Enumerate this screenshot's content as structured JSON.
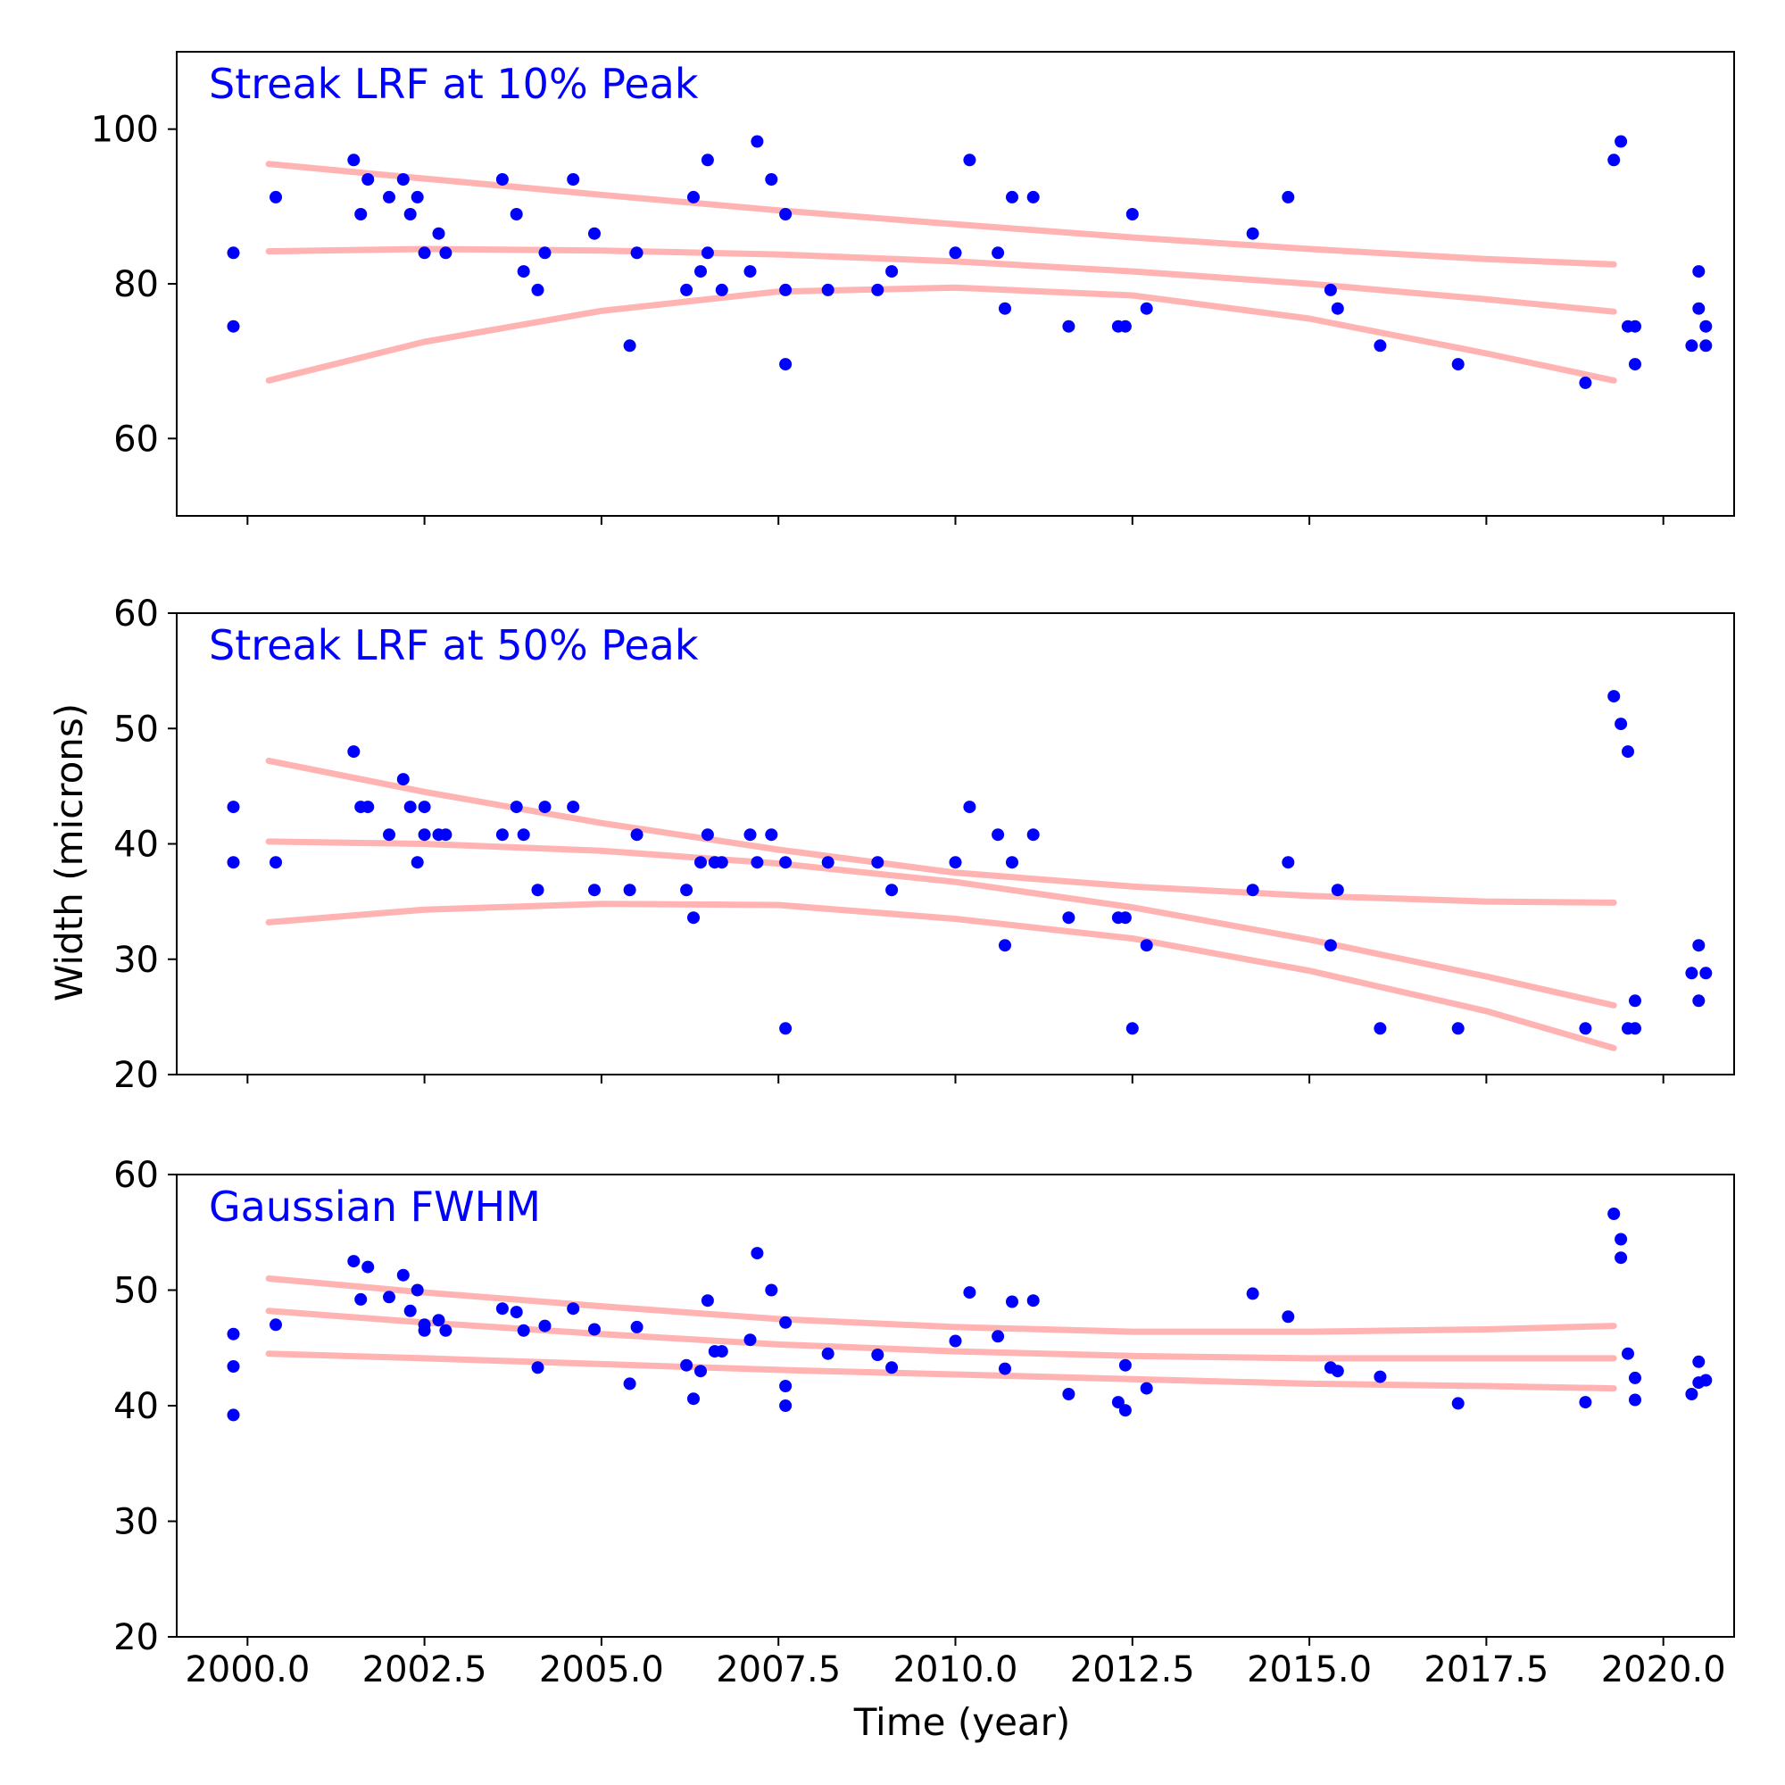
{
  "figure": {
    "xlabel": "Time (year)",
    "ylabel": "Width (microns)",
    "xlim": [
      1999.0,
      2021.0
    ],
    "xticks": [
      2000.0,
      2002.5,
      2005.0,
      2007.5,
      2010.0,
      2012.5,
      2015.0,
      2017.5,
      2020.0
    ],
    "xtick_labels": [
      "2000.0",
      "2002.5",
      "2005.0",
      "2007.5",
      "2010.0",
      "2012.5",
      "2015.0",
      "2017.5",
      "2020.0"
    ],
    "colors": {
      "points": "#0000ff",
      "fit": "#ffb3b3",
      "title": "#0000ff",
      "axes": "#000000"
    }
  },
  "chart_data": [
    {
      "type": "scatter",
      "title": "Streak LRF at 10% Peak",
      "ylim": [
        50,
        110
      ],
      "yticks": [
        60,
        80,
        100
      ],
      "ytick_labels": [
        "60",
        "80",
        "100"
      ],
      "grid": false,
      "points": {
        "x": [
          1999.8,
          1999.8,
          2000.4,
          2001.5,
          2001.6,
          2001.7,
          2002.0,
          2002.2,
          2002.3,
          2002.4,
          2002.5,
          2002.7,
          2002.8,
          2003.6,
          2003.8,
          2003.9,
          2004.1,
          2004.2,
          2004.6,
          2004.9,
          2005.4,
          2005.5,
          2006.2,
          2006.3,
          2006.4,
          2006.5,
          2006.5,
          2006.7,
          2007.1,
          2007.2,
          2007.4,
          2007.6,
          2007.6,
          2007.6,
          2008.2,
          2008.9,
          2009.1,
          2010.0,
          2010.2,
          2010.6,
          2010.7,
          2010.8,
          2011.1,
          2011.6,
          2012.3,
          2012.4,
          2012.5,
          2012.7,
          2014.2,
          2014.7,
          2015.3,
          2015.4,
          2016.0,
          2017.1,
          2018.9,
          2019.3,
          2019.4,
          2019.5,
          2019.6,
          2019.6,
          2020.4,
          2020.5,
          2020.5,
          2020.6,
          2020.6
        ],
        "y": [
          84,
          74.5,
          91.2,
          96,
          89,
          93.5,
          91.2,
          93.5,
          89,
          91.2,
          84,
          86.5,
          84,
          93.5,
          89,
          81.6,
          79.2,
          84,
          93.5,
          86.5,
          72,
          84,
          79.2,
          91.2,
          81.6,
          96,
          84,
          79.2,
          81.6,
          98.4,
          93.5,
          79.2,
          89,
          69.6,
          79.2,
          79.2,
          81.6,
          84,
          96,
          84,
          76.8,
          91.2,
          91.2,
          74.5,
          74.5,
          74.5,
          89,
          76.8,
          86.5,
          91.2,
          79.2,
          76.8,
          72,
          69.6,
          67.2,
          96,
          98.4,
          74.5,
          74.5,
          69.6,
          72,
          76.8,
          81.6,
          74.5,
          72
        ]
      },
      "fits": [
        {
          "x": [
            2000.3,
            2002.5,
            2005.0,
            2007.5,
            2010.0,
            2012.5,
            2015.0,
            2017.5,
            2019.3
          ],
          "y": [
            95.5,
            93.6,
            91.5,
            89.5,
            87.7,
            86.0,
            84.5,
            83.2,
            82.5
          ]
        },
        {
          "x": [
            2000.3,
            2002.5,
            2005.0,
            2007.5,
            2010.0,
            2012.5,
            2015.0,
            2017.5,
            2019.3
          ],
          "y": [
            84.2,
            84.5,
            84.3,
            83.8,
            82.9,
            81.6,
            80.0,
            78.0,
            76.4
          ]
        },
        {
          "x": [
            2000.3,
            2002.5,
            2005.0,
            2007.5,
            2010.0,
            2012.5,
            2015.0,
            2017.5,
            2019.3
          ],
          "y": [
            67.5,
            72.5,
            76.5,
            79.0,
            79.5,
            78.5,
            75.5,
            71.0,
            67.5
          ]
        }
      ]
    },
    {
      "type": "scatter",
      "title": "Streak LRF at 50% Peak",
      "ylim": [
        20,
        60
      ],
      "yticks": [
        20,
        30,
        40,
        50,
        60
      ],
      "ytick_labels": [
        "20",
        "30",
        "40",
        "50",
        "60"
      ],
      "grid": false,
      "points": {
        "x": [
          1999.8,
          1999.8,
          2000.4,
          2001.5,
          2001.6,
          2001.7,
          2002.0,
          2002.2,
          2002.3,
          2002.4,
          2002.5,
          2002.5,
          2002.7,
          2002.8,
          2003.6,
          2003.8,
          2003.9,
          2004.1,
          2004.2,
          2004.6,
          2004.9,
          2005.4,
          2005.5,
          2006.2,
          2006.3,
          2006.4,
          2006.5,
          2006.6,
          2006.7,
          2007.1,
          2007.2,
          2007.4,
          2007.6,
          2007.6,
          2008.2,
          2008.9,
          2009.1,
          2010.0,
          2010.2,
          2010.6,
          2010.7,
          2010.8,
          2011.1,
          2011.6,
          2012.3,
          2012.4,
          2012.5,
          2012.7,
          2014.2,
          2014.7,
          2015.3,
          2015.4,
          2016.0,
          2017.1,
          2018.9,
          2019.3,
          2019.4,
          2019.5,
          2019.5,
          2019.6,
          2019.6,
          2020.4,
          2020.5,
          2020.5,
          2020.6
        ],
        "y": [
          43.2,
          38.4,
          38.4,
          48,
          43.2,
          43.2,
          40.8,
          45.6,
          43.2,
          38.4,
          40.8,
          43.2,
          40.8,
          40.8,
          40.8,
          43.2,
          40.8,
          36,
          43.2,
          43.2,
          36,
          36,
          40.8,
          36,
          33.6,
          38.4,
          40.8,
          38.4,
          38.4,
          40.8,
          38.4,
          40.8,
          38.4,
          24,
          38.4,
          38.4,
          36,
          38.4,
          43.2,
          40.8,
          31.2,
          38.4,
          40.8,
          33.6,
          33.6,
          33.6,
          24,
          31.2,
          36,
          38.4,
          31.2,
          36,
          24,
          24,
          24,
          52.8,
          50.4,
          48,
          24,
          26.4,
          24,
          28.8,
          31.2,
          26.4,
          28.8
        ]
      },
      "fits": [
        {
          "x": [
            2000.3,
            2002.5,
            2005.0,
            2007.5,
            2010.0,
            2012.5,
            2015.0,
            2017.5,
            2019.3
          ],
          "y": [
            47.2,
            44.5,
            41.8,
            39.5,
            37.5,
            36.3,
            35.5,
            35.0,
            34.9
          ]
        },
        {
          "x": [
            2000.3,
            2002.5,
            2005.0,
            2007.5,
            2010.0,
            2012.5,
            2015.0,
            2017.5,
            2019.3
          ],
          "y": [
            40.2,
            40.0,
            39.4,
            38.3,
            36.7,
            34.5,
            31.7,
            28.5,
            26.0
          ]
        },
        {
          "x": [
            2000.3,
            2002.5,
            2005.0,
            2007.5,
            2010.0,
            2012.5,
            2015.0,
            2017.5,
            2019.3
          ],
          "y": [
            33.2,
            34.3,
            34.8,
            34.7,
            33.5,
            31.8,
            29.0,
            25.5,
            22.3
          ]
        }
      ]
    },
    {
      "type": "scatter",
      "title": "Gaussian FWHM",
      "ylim": [
        20,
        60
      ],
      "yticks": [
        20,
        30,
        40,
        50,
        60
      ],
      "ytick_labels": [
        "20",
        "30",
        "40",
        "50",
        "60"
      ],
      "grid": false,
      "points": {
        "x": [
          1999.8,
          1999.8,
          1999.8,
          2000.4,
          2001.5,
          2001.6,
          2001.7,
          2002.0,
          2002.2,
          2002.3,
          2002.4,
          2002.5,
          2002.5,
          2002.7,
          2002.8,
          2003.6,
          2003.8,
          2003.9,
          2004.1,
          2004.2,
          2004.6,
          2004.9,
          2005.4,
          2005.5,
          2006.2,
          2006.3,
          2006.4,
          2006.5,
          2006.6,
          2006.7,
          2007.1,
          2007.2,
          2007.4,
          2007.6,
          2007.6,
          2007.6,
          2008.2,
          2008.9,
          2009.1,
          2010.0,
          2010.2,
          2010.6,
          2010.7,
          2010.8,
          2011.1,
          2011.6,
          2012.3,
          2012.4,
          2012.4,
          2012.7,
          2014.2,
          2014.7,
          2015.3,
          2015.4,
          2016.0,
          2017.1,
          2018.9,
          2019.3,
          2019.4,
          2019.4,
          2019.5,
          2019.6,
          2019.6,
          2020.4,
          2020.5,
          2020.5,
          2020.6
        ],
        "y": [
          46.2,
          43.4,
          39.2,
          47,
          52.5,
          49.2,
          52,
          49.4,
          51.3,
          48.2,
          50,
          47,
          46.5,
          47.4,
          46.5,
          48.4,
          48.1,
          46.5,
          43.3,
          46.9,
          48.4,
          46.6,
          41.9,
          46.8,
          43.5,
          40.6,
          43,
          49.1,
          44.7,
          44.7,
          45.7,
          53.2,
          50,
          41.7,
          47.2,
          40,
          44.5,
          44.4,
          43.3,
          45.6,
          49.8,
          46,
          43.2,
          49,
          49.1,
          41,
          40.3,
          43.5,
          39.6,
          41.5,
          49.7,
          47.7,
          43.3,
          43,
          42.5,
          40.2,
          40.3,
          56.6,
          54.4,
          52.8,
          44.5,
          42.4,
          40.5,
          41,
          43.8,
          42,
          42.2
        ]
      },
      "fits": [
        {
          "x": [
            2000.3,
            2002.5,
            2005.0,
            2007.5,
            2010.0,
            2012.5,
            2015.0,
            2017.5,
            2019.3
          ],
          "y": [
            51.0,
            49.8,
            48.6,
            47.5,
            46.8,
            46.4,
            46.4,
            46.6,
            46.9
          ]
        },
        {
          "x": [
            2000.3,
            2002.5,
            2005.0,
            2007.5,
            2010.0,
            2012.5,
            2015.0,
            2017.5,
            2019.3
          ],
          "y": [
            48.2,
            47.2,
            46.2,
            45.3,
            44.7,
            44.3,
            44.1,
            44.1,
            44.1
          ]
        },
        {
          "x": [
            2000.3,
            2002.5,
            2005.0,
            2007.5,
            2010.0,
            2012.5,
            2015.0,
            2017.5,
            2019.3
          ],
          "y": [
            44.5,
            44.1,
            43.6,
            43.1,
            42.7,
            42.3,
            41.9,
            41.7,
            41.5
          ]
        }
      ]
    }
  ]
}
